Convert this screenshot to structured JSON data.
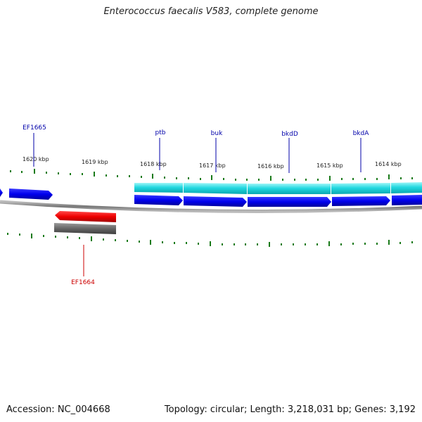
{
  "header": {
    "title": "Enterococcus faecalis V583, complete genome"
  },
  "footer": {
    "accession": "Accession: NC_004668",
    "summary": "Topology: circular; Length: 3,218,031 bp; Genes: 3,192"
  },
  "ruler": {
    "labels": [
      "1620 kbp",
      "1619 kbp",
      "1618 kbp",
      "1617 kbp",
      "1616 kbp",
      "1615 kbp",
      "1614 kbp"
    ],
    "tick_color": "#1a7a1a"
  },
  "colors": {
    "forward_gene": "#0000ee",
    "reverse_gene": "#ee0000",
    "cds_band": "#22d8e0",
    "reverse_cds_band": "#666666",
    "backbone": "#888888",
    "forward_label": "#0000aa",
    "reverse_label": "#cc0000"
  },
  "features": {
    "forward": [
      {
        "name": "EF1665",
        "labeled": true
      },
      {
        "name": "ptb",
        "labeled": true
      },
      {
        "name": "buk",
        "labeled": true
      },
      {
        "name": "bkdD",
        "labeled": true
      },
      {
        "name": "bkdA",
        "labeled": true
      }
    ],
    "reverse": [
      {
        "name": "EF1664",
        "labeled": true
      }
    ]
  }
}
